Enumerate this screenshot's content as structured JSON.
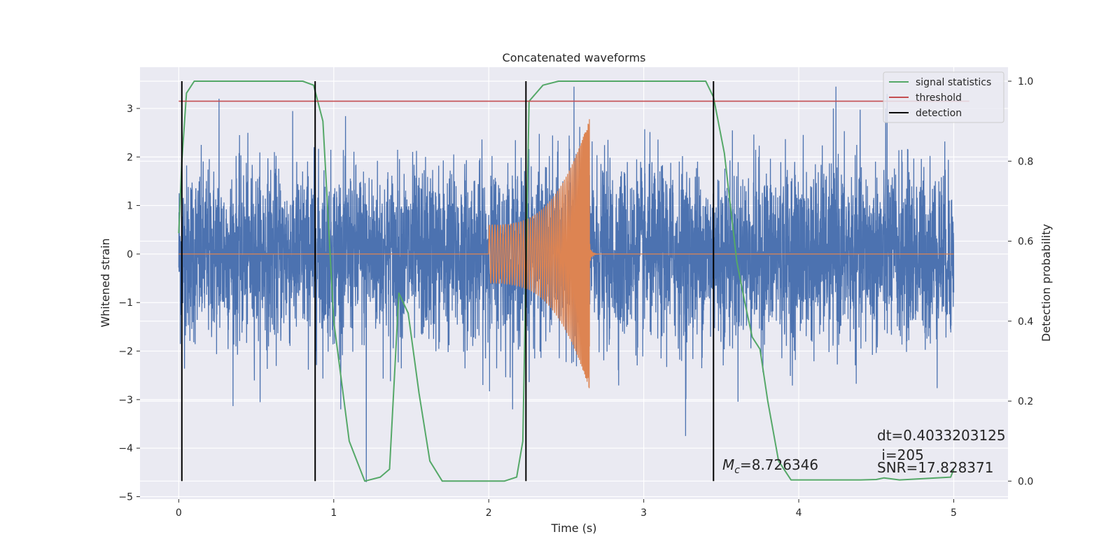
{
  "chart_data": {
    "type": "line",
    "title": "Concatenated waveforms",
    "xlabel": "Time (s)",
    "ylabel": "Whitened strain",
    "y2label": "Detection probability",
    "xlim": [
      -0.25,
      5.35
    ],
    "ylim": [
      -5.05,
      3.85
    ],
    "y2lim": [
      -0.045,
      1.035
    ],
    "grid": true,
    "legend_position": "top-right",
    "x_ticks": [
      "0",
      "1",
      "2",
      "3",
      "4",
      "5"
    ],
    "y_ticks": [
      "3",
      "2",
      "1",
      "0",
      "−1",
      "−2",
      "−3",
      "−4",
      "−5"
    ],
    "y2_ticks": [
      "1.0",
      "0.8",
      "0.6",
      "0.4",
      "0.2",
      "0.0"
    ],
    "colors": {
      "noise": "#4c72b0",
      "waveform": "#dd8452",
      "statistics": "#55a868",
      "threshold": "#c44e52",
      "detection": "#000000",
      "axes_bg": "#eaeaf2"
    },
    "series": [
      {
        "name": "",
        "role": "whitened-noise",
        "axis": "left",
        "x_range": [
          0,
          5
        ],
        "envelope_typical": 1.2,
        "notable_peaks": [
          {
            "x": 0.26,
            "y": 3.2
          },
          {
            "x": 1.21,
            "y": -4.7
          },
          {
            "x": 2.55,
            "y": 3.45
          },
          {
            "x": 3.27,
            "y": -3.75
          },
          {
            "x": 4.24,
            "y": 3.45
          },
          {
            "x": 4.57,
            "y": 3.3
          }
        ]
      },
      {
        "name": "",
        "role": "injected-chirp",
        "axis": "left",
        "x_range": [
          2.0,
          2.65
        ],
        "amplitude_start": 0.6,
        "amplitude_end": 2.8,
        "min": -2.9
      },
      {
        "name": "signal statistics",
        "axis": "right",
        "x": [
          0.0,
          0.02,
          0.05,
          0.1,
          0.8,
          0.87,
          0.93,
          1.0,
          1.1,
          1.2,
          1.3,
          1.36,
          1.42,
          1.48,
          1.55,
          1.62,
          1.7,
          2.1,
          2.18,
          2.22,
          2.26,
          2.35,
          2.45,
          3.4,
          3.45,
          3.52,
          3.6,
          3.65,
          3.7,
          3.75,
          3.8,
          3.87,
          3.95,
          4.4,
          4.5,
          4.55,
          4.65,
          4.98,
          5.0
        ],
        "y": [
          0.62,
          0.8,
          0.97,
          1.0,
          1.0,
          0.99,
          0.9,
          0.4,
          0.1,
          0.0,
          0.01,
          0.03,
          0.47,
          0.42,
          0.22,
          0.05,
          0.0,
          0.0,
          0.01,
          0.1,
          0.95,
          0.99,
          1.0,
          1.0,
          0.96,
          0.82,
          0.55,
          0.45,
          0.36,
          0.33,
          0.2,
          0.05,
          0.003,
          0.003,
          0.004,
          0.008,
          0.003,
          0.01,
          0.03
        ]
      },
      {
        "name": "threshold",
        "axis": "right",
        "x": [
          0.0,
          5.1
        ],
        "y": [
          0.95,
          0.95
        ]
      },
      {
        "name": "detection",
        "axis": "right",
        "x": [
          0.02,
          0.88,
          2.24,
          3.45
        ],
        "y_from": 0.0,
        "y_to": 1.0
      }
    ],
    "annotations": {
      "mc_symbol": "M",
      "mc_sub": "c",
      "mc_value": "=8.726346",
      "dt": "dt=0.4033203125",
      "i": " i=205",
      "snr": "SNR=17.828371"
    }
  }
}
